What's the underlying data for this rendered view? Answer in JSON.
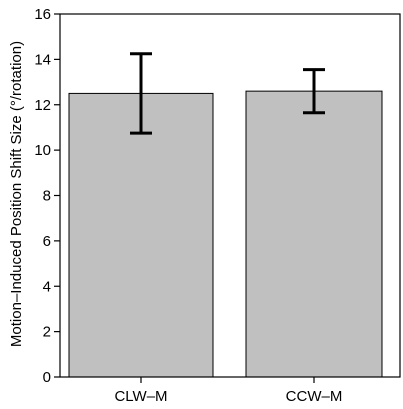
{
  "chart_data": {
    "type": "bar",
    "categories": [
      "CLW–M",
      "CCW–M"
    ],
    "values": [
      12.5,
      12.6
    ],
    "error_low": [
      10.75,
      11.65
    ],
    "error_high": [
      14.25,
      13.55
    ],
    "ylabel": "Motion–Induced Position Shift Size (°/rotation)",
    "xlabel": "",
    "title": "",
    "ylim": [
      0,
      16
    ],
    "yticks": [
      0,
      2,
      4,
      6,
      8,
      10,
      12,
      14,
      16
    ],
    "grid": false,
    "bar_color": "#c0c0c0",
    "axis_color": "#000000"
  }
}
